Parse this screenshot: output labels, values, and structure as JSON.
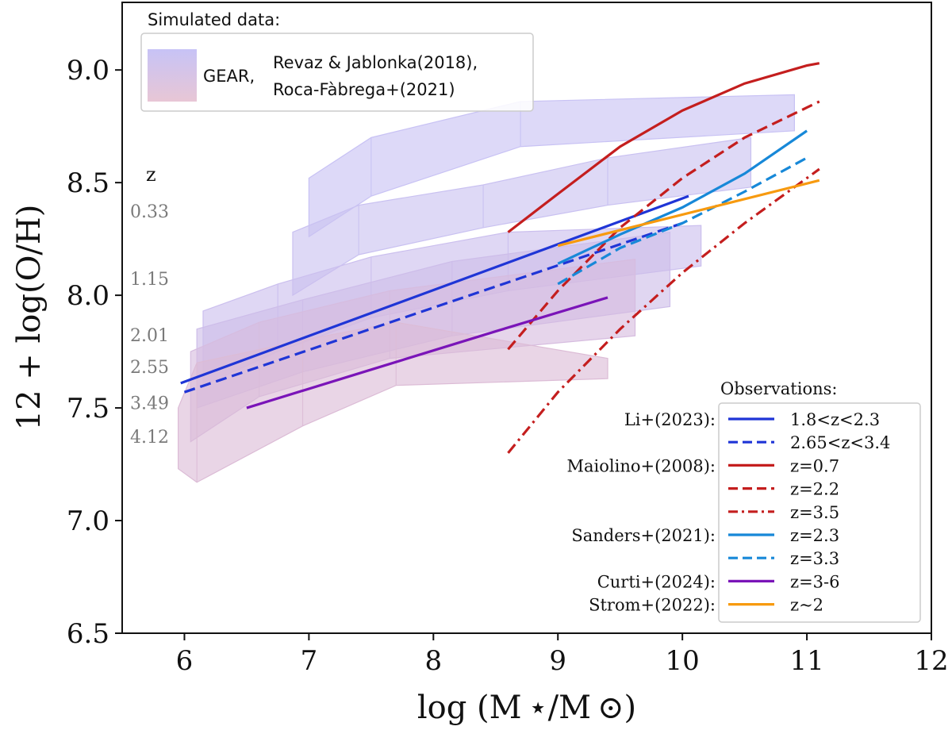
{
  "chart_data": {
    "type": "line",
    "xlabel": "log (M ⋆/M ⊙)",
    "ylabel": "12 + log(O/H)",
    "xlim": [
      5.5,
      12
    ],
    "ylim": [
      6.5,
      9.3
    ],
    "x_ticks": [
      "6",
      "7",
      "8",
      "9",
      "10",
      "11",
      "12"
    ],
    "x_tick_values": [
      6,
      7,
      8,
      9,
      10,
      11,
      12
    ],
    "y_ticks": [
      "6.5",
      "7.0",
      "7.5",
      "8.0",
      "8.5",
      "9.0"
    ],
    "y_tick_values": [
      6.5,
      7.0,
      7.5,
      8.0,
      8.5,
      9.0
    ],
    "z_header": "z",
    "z_labels": [
      {
        "text": "0.33",
        "y": 8.37
      },
      {
        "text": "1.15",
        "y": 8.07
      },
      {
        "text": "2.01",
        "y": 7.82
      },
      {
        "text": "2.55",
        "y": 7.68
      },
      {
        "text": "3.49",
        "y": 7.52
      },
      {
        "text": "4.12",
        "y": 7.37
      }
    ],
    "simulated_legend": {
      "title": "Simulated data:",
      "label_main": "GEAR,",
      "label_line1": "Revaz & Jablonka(2018),",
      "label_line2": "Roca-Fàbrega+(2021)"
    },
    "bands": [
      {
        "z": "0.33",
        "color": "#c8c2f4",
        "x": [
          7.0,
          7.5,
          8.7,
          10.9
        ],
        "upper": [
          8.52,
          8.7,
          8.86,
          8.89
        ],
        "lower": [
          8.26,
          8.44,
          8.66,
          8.73
        ]
      },
      {
        "z": "1.15",
        "color": "#c9c1f1",
        "x": [
          6.87,
          7.4,
          8.4,
          9.4,
          10.55
        ],
        "upper": [
          8.28,
          8.4,
          8.49,
          8.61,
          8.7
        ],
        "lower": [
          8.0,
          8.18,
          8.3,
          8.4,
          8.48
        ]
      },
      {
        "z": "2.01",
        "color": "#cbbfee",
        "x": [
          6.15,
          6.75,
          7.5,
          8.6,
          10.15
        ],
        "upper": [
          7.93,
          8.05,
          8.17,
          8.28,
          8.31
        ],
        "lower": [
          7.6,
          7.75,
          7.9,
          8.02,
          8.13
        ]
      },
      {
        "z": "2.55",
        "color": "#cdbde9",
        "x": [
          6.1,
          6.95,
          8.15,
          9.9
        ],
        "upper": [
          7.85,
          7.98,
          8.15,
          8.28
        ],
        "lower": [
          7.5,
          7.66,
          7.82,
          7.95
        ]
      },
      {
        "z": "3.49",
        "color": "#d6bcdf",
        "x": [
          6.05,
          6.6,
          7.65,
          9.62
        ],
        "upper": [
          7.75,
          7.88,
          8.02,
          8.16
        ],
        "lower": [
          7.35,
          7.55,
          7.72,
          7.82
        ]
      },
      {
        "z": "4.12",
        "color": "#dcbcd6",
        "x": [
          5.95,
          6.1,
          6.95,
          7.7,
          9.4
        ],
        "upper": [
          7.5,
          7.7,
          7.8,
          7.88,
          7.72
        ],
        "lower": [
          7.23,
          7.17,
          7.42,
          7.6,
          7.63
        ]
      }
    ],
    "observations_title": "Observations:",
    "series": [
      {
        "group": "Li+(2023):",
        "name": "1.8<z<2.3",
        "color": "#1f35d6",
        "dash": "solid",
        "x": [
          5.97,
          10.05
        ],
        "y": [
          7.61,
          8.44
        ]
      },
      {
        "group": "",
        "name": "2.65<z<3.4",
        "color": "#1f35d6",
        "dash": "dashed",
        "x": [
          6.0,
          10.0
        ],
        "y": [
          7.57,
          8.32
        ]
      },
      {
        "group": "Maiolino+(2008):",
        "name": "z=0.7",
        "color": "#c41e1e",
        "dash": "solid",
        "x": [
          8.6,
          9.0,
          9.5,
          10.0,
          10.5,
          11.0,
          11.1
        ],
        "y": [
          8.28,
          8.45,
          8.66,
          8.82,
          8.94,
          9.02,
          9.03
        ]
      },
      {
        "group": "",
        "name": "z=2.2",
        "color": "#c41e1e",
        "dash": "dashed",
        "x": [
          8.6,
          9.0,
          9.5,
          10.0,
          10.5,
          11.1
        ],
        "y": [
          7.76,
          8.02,
          8.3,
          8.52,
          8.7,
          8.86
        ]
      },
      {
        "group": "",
        "name": "z=3.5",
        "color": "#c41e1e",
        "dash": "dashdot",
        "x": [
          8.6,
          9.0,
          9.5,
          10.0,
          10.5,
          11.1
        ],
        "y": [
          7.3,
          7.57,
          7.85,
          8.1,
          8.32,
          8.56
        ]
      },
      {
        "group": "Sanders+(2021):",
        "name": "z=2.3",
        "color": "#1788d8",
        "dash": "solid",
        "x": [
          9.0,
          9.5,
          10.0,
          10.5,
          11.0
        ],
        "y": [
          8.14,
          8.27,
          8.39,
          8.54,
          8.73
        ]
      },
      {
        "group": "",
        "name": "z=3.3",
        "color": "#1788d8",
        "dash": "dashed",
        "x": [
          9.0,
          9.5,
          10.0,
          10.5,
          11.0
        ],
        "y": [
          8.05,
          8.21,
          8.32,
          8.46,
          8.61
        ]
      },
      {
        "group": "Curti+(2024):",
        "name": "z=3-6",
        "color": "#7a14b8",
        "dash": "solid",
        "x": [
          6.5,
          7.5,
          8.5,
          9.4
        ],
        "y": [
          7.5,
          7.67,
          7.84,
          7.99
        ]
      },
      {
        "group": "Strom+(2022):",
        "name": "z~2",
        "color": "#f79a0f",
        "dash": "solid",
        "x": [
          9.0,
          11.1
        ],
        "y": [
          8.22,
          8.51
        ]
      }
    ]
  }
}
